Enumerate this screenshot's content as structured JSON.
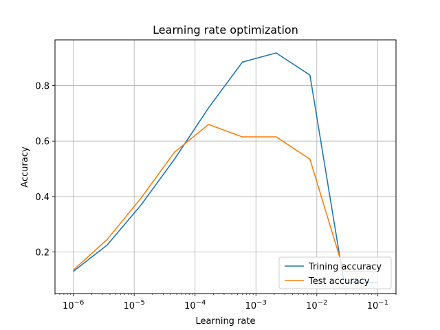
{
  "chart_data": {
    "type": "line",
    "title": "Learning rate optimization",
    "xlabel": "Learning rate",
    "ylabel": "Accuracy",
    "xscale": "log",
    "xlim": [
      5e-07,
      0.2
    ],
    "ylim": [
      0.05,
      0.965
    ],
    "x_ticks": [
      {
        "value": 1e-06,
        "base": "10",
        "exp": "−6"
      },
      {
        "value": 1e-05,
        "base": "10",
        "exp": "−5"
      },
      {
        "value": 0.0001,
        "base": "10",
        "exp": "−4"
      },
      {
        "value": 0.001,
        "base": "10",
        "exp": "−3"
      },
      {
        "value": 0.01,
        "base": "10",
        "exp": "−2"
      },
      {
        "value": 0.1,
        "base": "10",
        "exp": "−1"
      }
    ],
    "y_ticks": [
      {
        "value": 0.2,
        "label": "0.2"
      },
      {
        "value": 0.4,
        "label": "0.4"
      },
      {
        "value": 0.6,
        "label": "0.6"
      },
      {
        "value": 0.8,
        "label": "0.8"
      }
    ],
    "grid": true,
    "legend_position": "lower-right",
    "x": [
      1e-06,
      3.6e-06,
      1.3e-05,
      4.6e-05,
      0.000167,
      0.0006,
      0.00215,
      0.0077,
      0.028,
      0.1
    ],
    "series": [
      {
        "name": "Trining accuracy",
        "color": "#1f77b4",
        "values": [
          0.13,
          0.225,
          0.37,
          0.535,
          0.72,
          0.885,
          0.918,
          0.838,
          0.09,
          0.09
        ]
      },
      {
        "name": "Test accuracy",
        "color": "#ff7f0e",
        "values": [
          0.135,
          0.245,
          0.395,
          0.56,
          0.66,
          0.615,
          0.615,
          0.535,
          0.13,
          0.13
        ]
      }
    ]
  }
}
